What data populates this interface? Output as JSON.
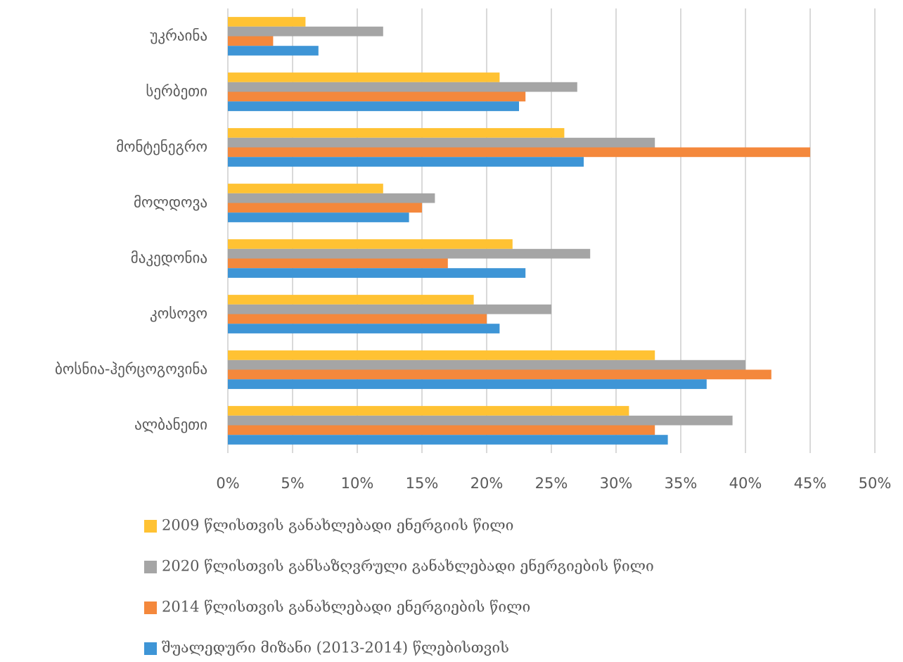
{
  "chart_data": {
    "type": "barh",
    "categories": [
      "უკრაინა",
      "სერბეთი",
      "მონტენეგრო",
      "მოლდოვა",
      "მაკედონია",
      "კოსოვო",
      "ბოსნია-ჰერცოგოვინა",
      "ალბანეთი"
    ],
    "series": [
      {
        "name": "2009 წლისთვის განახლებადი ენერგიის წილი",
        "color": "#FFC233",
        "values": [
          6,
          21,
          26,
          12,
          22,
          19,
          33,
          31
        ]
      },
      {
        "name": "2020 წლისთვის განსაზღვრული განახლებადი ენერგიების წილი",
        "color": "#A5A5A5",
        "values": [
          12,
          27,
          33,
          16,
          28,
          25,
          40,
          39
        ]
      },
      {
        "name": "2014 წლისთვის განახლებადი ენერგიების წილი",
        "color": "#F4883C",
        "values": [
          3.5,
          23,
          45,
          15,
          17,
          20,
          42,
          33
        ]
      },
      {
        "name": "შუალედური მიზანი (2013-2014) წლებისთვის",
        "color": "#3E95D6",
        "values": [
          7,
          22.5,
          27.5,
          14,
          23,
          21,
          37,
          34
        ]
      }
    ],
    "xlim": [
      0,
      50
    ],
    "xticks": [
      {
        "value": 0,
        "label": "0%"
      },
      {
        "value": 5,
        "label": "5%"
      },
      {
        "value": 10,
        "label": "10%"
      },
      {
        "value": 15,
        "label": "15%"
      },
      {
        "value": 20,
        "label": "20%"
      },
      {
        "value": 25,
        "label": "25%"
      },
      {
        "value": 30,
        "label": "30%"
      },
      {
        "value": 35,
        "label": "35%"
      },
      {
        "value": 40,
        "label": "40%"
      },
      {
        "value": 45,
        "label": "45%"
      },
      {
        "value": 50,
        "label": "50%"
      }
    ],
    "grid": true
  }
}
